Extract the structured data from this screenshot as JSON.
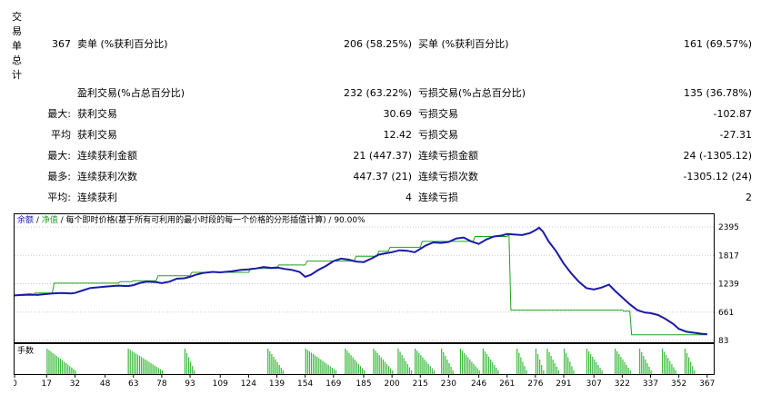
{
  "stats": {
    "side_label_chars": [
      "交",
      "易",
      "单",
      "总",
      "计"
    ],
    "total_trades": "367",
    "short_label": "卖单 (%获利百分比)",
    "short_value": "206 (58.25%)",
    "long_label": "买单 (%获利百分比)",
    "long_value": "161 (69.57%)",
    "profit_trades_label": "盈利交易(%占总百分比)",
    "profit_trades_value": "232 (63.22%)",
    "loss_trades_label": "亏损交易(%占总百分比)",
    "loss_trades_value": "135 (36.78%)",
    "rows": [
      {
        "prefix": "最大:",
        "left_label": "获利交易",
        "left_value": "30.69",
        "right_label": "亏损交易",
        "right_value": "-102.87"
      },
      {
        "prefix": "平均",
        "left_label": "获利交易",
        "left_value": "12.42",
        "right_label": "亏损交易",
        "right_value": "-27.31"
      },
      {
        "prefix": "最大:",
        "left_label": "连续获利金额",
        "left_value": "21 (447.37)",
        "right_label": "连续亏损金额",
        "right_value": "24 (-1305.12)"
      },
      {
        "prefix": "最多:",
        "left_label": "连续获利次数",
        "left_value": "447.37 (21)",
        "right_label": "连续亏损次数",
        "right_value": "-1305.12 (24)"
      },
      {
        "prefix": "平均:",
        "left_label": "连续获利",
        "left_value": "4",
        "right_label": "连续亏损",
        "right_value": "2"
      }
    ]
  },
  "chart": {
    "legend_balance": "余额",
    "legend_sep1": " / ",
    "legend_equity": "净值",
    "legend_rest": " / 每个即时价格(基于所有可利用的最小时段的每一个价格的分形插值计算) / 90.00%",
    "volume_label": "手数",
    "colors": {
      "balance": "#1a1aa6",
      "equity": "#22a022",
      "volume": "#3cb83c",
      "grid": "#c8c8c8"
    }
  },
  "chart_data": {
    "type": "line",
    "ylim": [
      83,
      2600
    ],
    "y_ticks": [
      "2395",
      "1817",
      "1239",
      "661",
      "83"
    ],
    "y_tick_values": [
      2395,
      1817,
      1239,
      661,
      83
    ],
    "x_ticks": [
      "0",
      "17",
      "32",
      "48",
      "63",
      "78",
      "93",
      "109",
      "124",
      "139",
      "154",
      "169",
      "185",
      "200",
      "215",
      "230",
      "246",
      "261",
      "276",
      "291",
      "307",
      "322",
      "337",
      "352",
      "367"
    ],
    "xlim": [
      0,
      370
    ],
    "series": [
      {
        "name": "余额",
        "x": [
          0,
          8,
          12,
          20,
          25,
          30,
          32,
          36,
          40,
          48,
          55,
          60,
          63,
          66,
          70,
          75,
          78,
          82,
          86,
          90,
          93,
          96,
          100,
          105,
          109,
          115,
          120,
          124,
          128,
          132,
          136,
          139,
          143,
          147,
          151,
          154,
          157,
          161,
          165,
          169,
          173,
          177,
          181,
          185,
          189,
          193,
          197,
          200,
          204,
          208,
          212,
          215,
          218,
          222,
          226,
          230,
          234,
          238,
          242,
          246,
          250,
          254,
          258,
          261,
          265,
          269,
          273,
          276,
          278,
          280,
          283,
          287,
          291,
          295,
          299,
          303,
          307,
          311,
          315,
          318,
          322,
          326,
          330,
          334,
          337,
          341,
          345,
          349,
          352,
          356,
          360,
          364,
          367
        ],
        "y": [
          1000,
          1020,
          1010,
          1040,
          1050,
          1040,
          1050,
          1100,
          1150,
          1180,
          1200,
          1190,
          1210,
          1250,
          1280,
          1270,
          1250,
          1280,
          1340,
          1350,
          1380,
          1420,
          1460,
          1480,
          1470,
          1490,
          1520,
          1530,
          1550,
          1580,
          1560,
          1570,
          1540,
          1520,
          1480,
          1380,
          1420,
          1520,
          1600,
          1700,
          1750,
          1730,
          1690,
          1680,
          1750,
          1830,
          1860,
          1880,
          1920,
          1910,
          1880,
          1950,
          2020,
          2080,
          2070,
          2090,
          2160,
          2180,
          2100,
          2050,
          2140,
          2200,
          2220,
          2250,
          2240,
          2230,
          2270,
          2330,
          2380,
          2300,
          2100,
          1900,
          1650,
          1450,
          1280,
          1150,
          1120,
          1160,
          1220,
          1100,
          960,
          820,
          700,
          650,
          640,
          600,
          520,
          420,
          320,
          260,
          240,
          220,
          210
        ]
      },
      {
        "name": "净值",
        "x": [
          0,
          10,
          11,
          20,
          21,
          55,
          56,
          62,
          63,
          75,
          76,
          93,
          94,
          124,
          125,
          139,
          140,
          154,
          155,
          180,
          181,
          192,
          193,
          198,
          199,
          215,
          216,
          243,
          244,
          261,
          262,
          263,
          322,
          323,
          326,
          327,
          366,
          367
        ],
        "y": [
          1000,
          1000,
          1050,
          1050,
          1250,
          1250,
          1280,
          1280,
          1300,
          1300,
          1400,
          1400,
          1470,
          1470,
          1550,
          1550,
          1620,
          1620,
          1700,
          1700,
          1800,
          1800,
          1900,
          1900,
          1980,
          1980,
          2100,
          2100,
          2200,
          2200,
          2250,
          700,
          700,
          680,
          680,
          200,
          200,
          200
        ]
      }
    ]
  }
}
